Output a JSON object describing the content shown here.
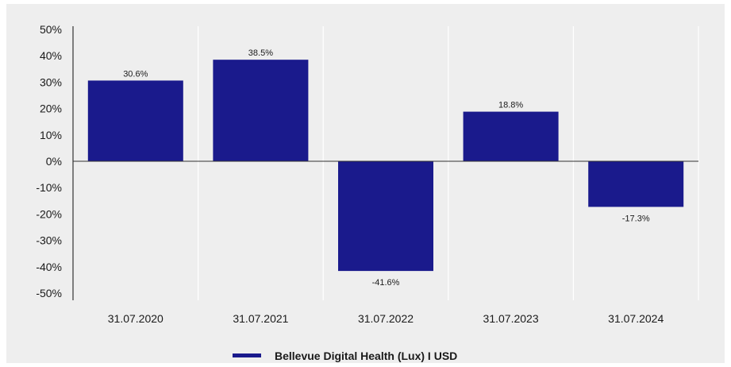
{
  "chart_data": {
    "type": "bar",
    "categories": [
      "31.07.2020",
      "31.07.2021",
      "31.07.2022",
      "31.07.2023",
      "31.07.2024"
    ],
    "series": [
      {
        "name": "Bellevue Digital Health (Lux) I USD",
        "values": [
          30.6,
          38.5,
          -41.6,
          18.8,
          -17.3
        ],
        "value_labels": [
          "30.6%",
          "38.5%",
          "-41.6%",
          "18.8%",
          "-17.3%"
        ],
        "color": "#1a1a8c"
      }
    ],
    "y_ticks": [
      50,
      40,
      30,
      20,
      10,
      0,
      -10,
      -20,
      -30,
      -40,
      -50
    ],
    "y_tick_labels": [
      "50%",
      "40%",
      "30%",
      "20%",
      "10%",
      "0%",
      "-10%",
      "-20%",
      "-30%",
      "-40%",
      "-50%"
    ],
    "ylim": [
      -50,
      50
    ],
    "title": "",
    "xlabel": "",
    "ylabel": "",
    "grid": "vertical",
    "legend_position": "bottom-center",
    "background_color": "#eeeeee"
  }
}
